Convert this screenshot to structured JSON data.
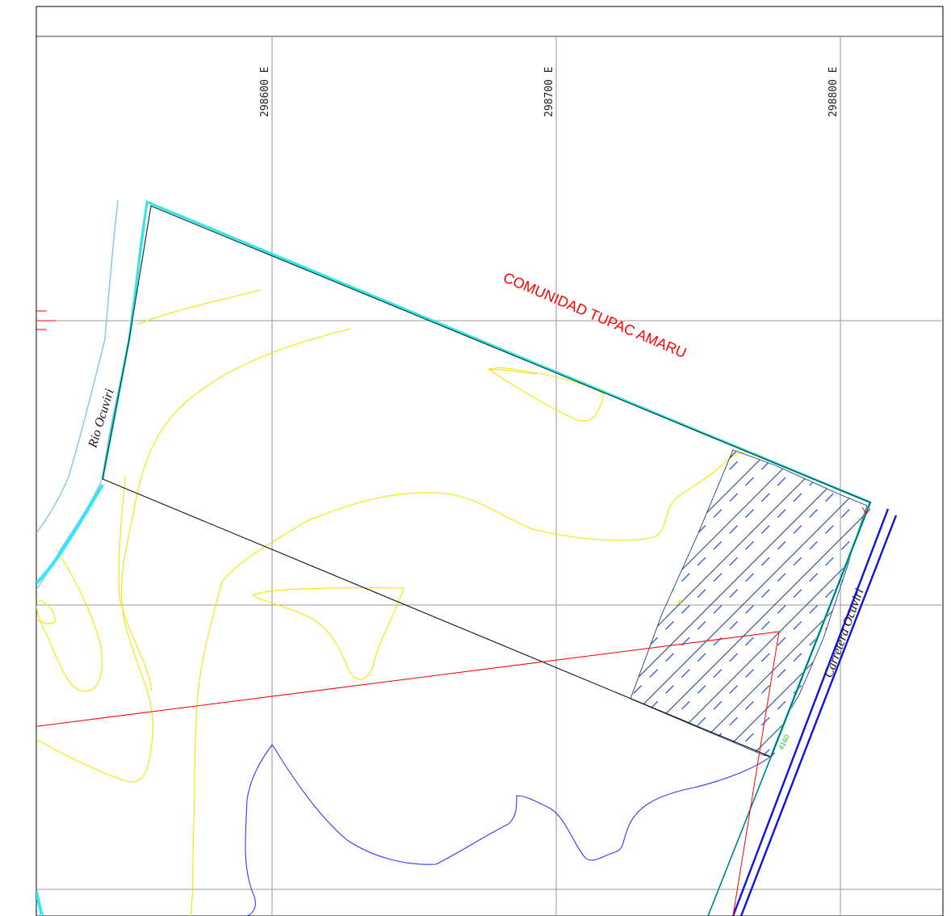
{
  "grid": {
    "easting_labels": [
      "298600 E",
      "298700 E",
      "298800 E"
    ]
  },
  "labels": {
    "community": "COMUNIDAD TUPAC AMARU",
    "river": "Rio Ocuviri",
    "road": "Carretera Ocuviri",
    "contour_value": "4160"
  },
  "colors": {
    "frame": "#000000",
    "grid": "#9a9a9a",
    "river": "#8ec5f0",
    "river_bank": "#33e6ff",
    "parcel": "#0a3a3a",
    "parcel_edge": "#33e6e6",
    "contour": "#f2e600",
    "stream": "#2b3cff",
    "road": "#1010e0",
    "boundary": "#ff0000",
    "hatch": "#1a3a7a",
    "hatch_dash": "#3050d0"
  },
  "icons": {
    "hatched_area": "hatch-pattern"
  }
}
